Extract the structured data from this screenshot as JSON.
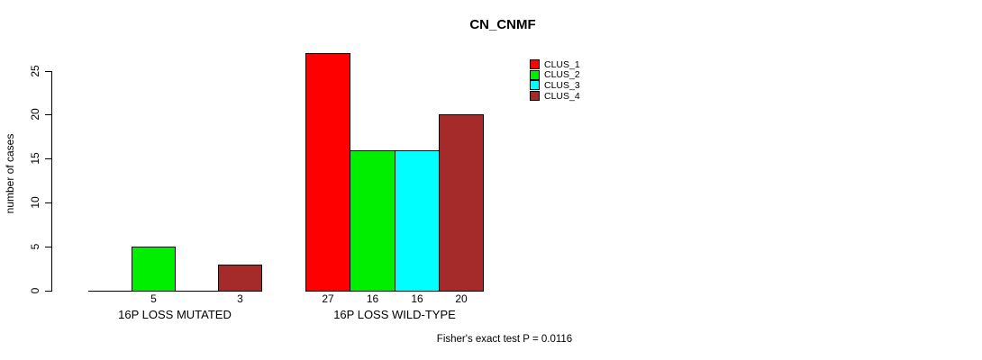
{
  "chart_data": {
    "type": "bar",
    "title": "CN_CNMF",
    "ylabel": "number of cases",
    "xlabel": "",
    "ylim": [
      0,
      27
    ],
    "yticks": [
      0,
      5,
      10,
      15,
      20,
      25
    ],
    "grid": false,
    "legend_position": "top-right",
    "legend": [
      {
        "label": "CLUS_1",
        "color": "#FF0000"
      },
      {
        "label": "CLUS_2",
        "color": "#00EE00"
      },
      {
        "label": "CLUS_3",
        "color": "#00FFFF"
      },
      {
        "label": "CLUS_4",
        "color": "#A52A2A"
      }
    ],
    "groups": [
      {
        "label": "16P LOSS MUTATED",
        "values": [
          0,
          5,
          0,
          3
        ],
        "bar_labels": [
          "",
          "5",
          "",
          "3"
        ]
      },
      {
        "label": "16P LOSS WILD-TYPE",
        "values": [
          27,
          16,
          16,
          20
        ],
        "bar_labels": [
          "27",
          "16",
          "16",
          "20"
        ]
      }
    ],
    "annotation": "Fisher's exact test P = 0.0116"
  }
}
